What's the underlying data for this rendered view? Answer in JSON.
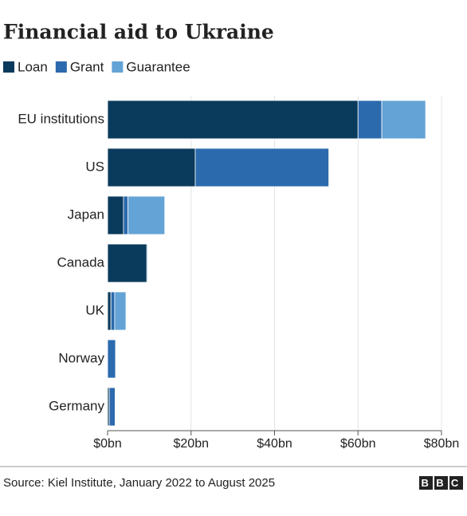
{
  "chart_data": {
    "type": "bar",
    "orientation": "horizontal",
    "stacked": true,
    "title": "Financial aid to Ukraine",
    "source": "Source: Kiel Institute, January 2022 to August 2025",
    "logo": "BBC",
    "categories": [
      "EU institutions",
      "US",
      "Japan",
      "Canada",
      "UK",
      "Norway",
      "Germany"
    ],
    "series": [
      {
        "name": "Loan",
        "color": "#0b3b5c",
        "values": [
          60,
          21,
          3.8,
          9.4,
          0.8,
          0,
          0.4
        ]
      },
      {
        "name": "Grant",
        "color": "#2b6aad",
        "values": [
          5.7,
          32,
          1.1,
          0.2,
          0.9,
          1.9,
          1.4
        ]
      },
      {
        "name": "Guarantee",
        "color": "#64a3d5",
        "values": [
          10.5,
          0,
          8.8,
          0,
          2.7,
          0,
          0
        ]
      }
    ],
    "xlim": [
      0,
      80
    ],
    "xticks": [
      {
        "value": 0,
        "label": "$0bn"
      },
      {
        "value": 20,
        "label": "$20bn"
      },
      {
        "value": 40,
        "label": "$40bn"
      },
      {
        "value": 60,
        "label": "$60bn"
      },
      {
        "value": 80,
        "label": "$80bn"
      }
    ],
    "grid": true
  }
}
